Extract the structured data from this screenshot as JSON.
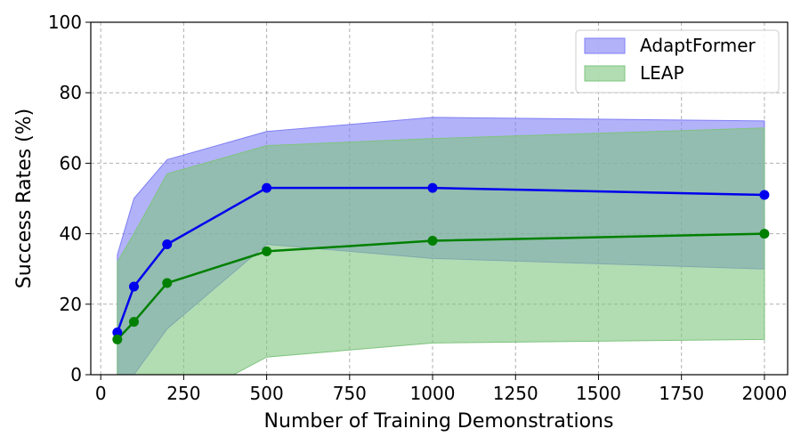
{
  "chart_data": {
    "type": "line",
    "xlabel": "Number of Training Demonstrations",
    "ylabel": "Success Rates (%)",
    "xlim": [
      -30,
      2070
    ],
    "ylim": [
      0,
      100
    ],
    "xticks": [
      0,
      250,
      500,
      750,
      1000,
      1250,
      1500,
      1750,
      2000
    ],
    "yticks": [
      0,
      20,
      40,
      60,
      80,
      100
    ],
    "grid": true,
    "legend_position": "top-right",
    "series": [
      {
        "name": "AdaptFormer",
        "color": "#0000ee",
        "band_color": "#7f7ff5",
        "x": [
          50,
          100,
          200,
          500,
          1000,
          2000
        ],
        "mean": [
          12,
          25,
          37,
          53,
          53,
          51
        ],
        "upper": [
          34,
          50,
          61,
          69,
          73,
          72
        ],
        "lower": [
          0,
          0,
          13,
          37,
          33,
          30
        ]
      },
      {
        "name": "LEAP",
        "color": "#008000",
        "band_color": "#7fc47f",
        "x": [
          50,
          100,
          200,
          500,
          1000,
          2000
        ],
        "mean": [
          10,
          15,
          26,
          35,
          38,
          40
        ],
        "upper": [
          32,
          40,
          57,
          65,
          67,
          70
        ],
        "lower": [
          -12,
          -10,
          -10,
          5,
          9,
          10
        ]
      }
    ]
  }
}
